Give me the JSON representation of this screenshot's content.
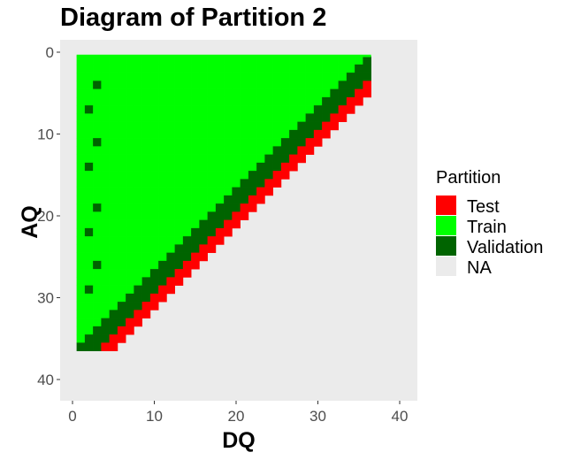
{
  "chart_data": {
    "type": "heatmap",
    "title": "Diagram of Partition 2",
    "xlabel": "DQ",
    "ylabel": "AQ",
    "xlim": [
      -1,
      42
    ],
    "ylim": [
      -1,
      42
    ],
    "y_reversed": true,
    "x_ticks": [
      0,
      10,
      20,
      30,
      40
    ],
    "y_ticks": [
      0,
      10,
      20,
      30,
      40
    ],
    "grid": false,
    "legend": {
      "title": "Partition",
      "placement": "right",
      "entries": [
        {
          "label": "Test",
          "color": "#ff0000"
        },
        {
          "label": "Train",
          "color": "#00ff00"
        },
        {
          "label": "Validation",
          "color": "#006400"
        },
        {
          "label": "NA",
          "color": "#ebebeb"
        }
      ]
    },
    "panel_background": "#ebebeb",
    "train_region": "AQ >= 0 and DQ >= 1 and DQ <= 36 - AQ",
    "validation_band": "37 - AQ <= DQ <= 39 - AQ",
    "test_band": "40 - AQ <= DQ <= 41 - AQ",
    "validation_points_in_train": [
      {
        "dq": 3,
        "aq": 4
      },
      {
        "dq": 2,
        "aq": 7
      },
      {
        "dq": 3,
        "aq": 11
      },
      {
        "dq": 2,
        "aq": 14
      },
      {
        "dq": 3,
        "aq": 19
      },
      {
        "dq": 2,
        "aq": 22
      },
      {
        "dq": 3,
        "aq": 26
      },
      {
        "dq": 2,
        "aq": 29
      }
    ]
  }
}
